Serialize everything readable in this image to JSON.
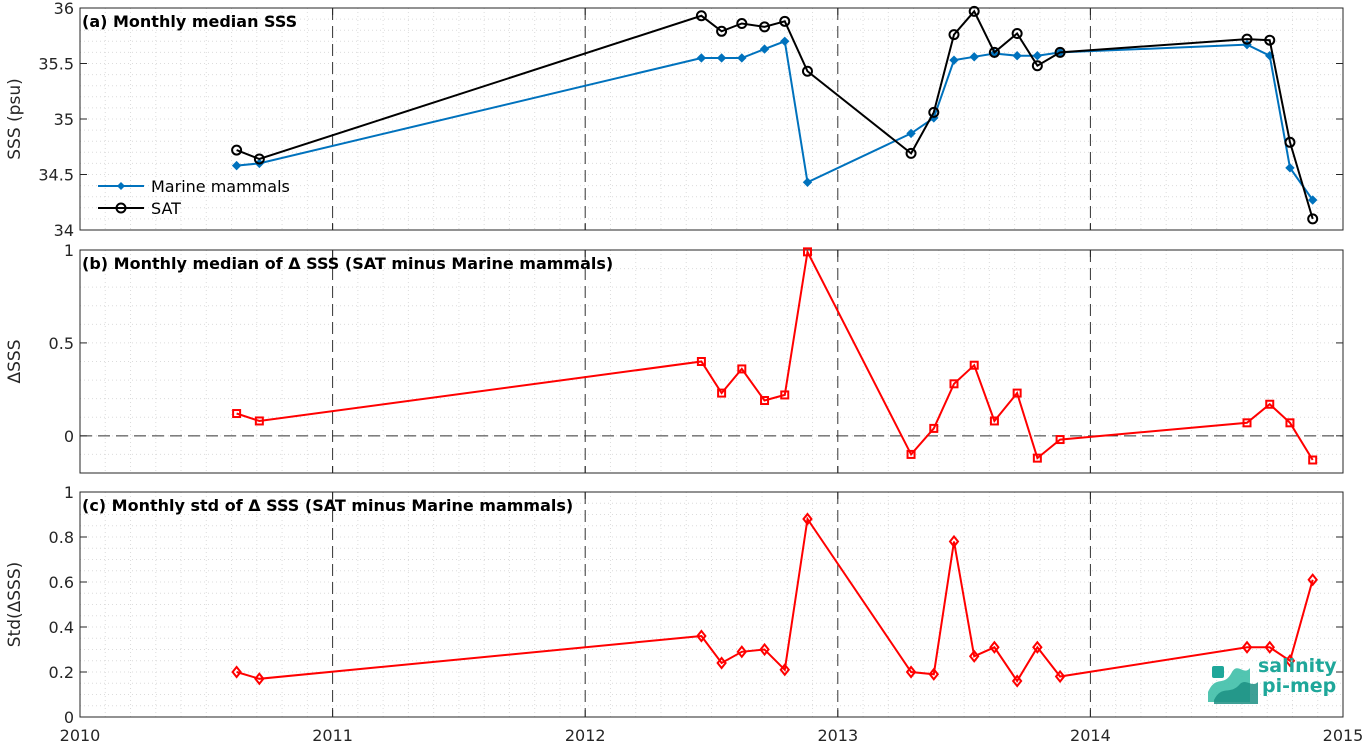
{
  "colors": {
    "mm": "#0072BD",
    "sat": "#000000",
    "delta": "#FF0000",
    "logo": "#1fa79a"
  },
  "logo": {
    "line1": "salinity",
    "line2": "pi-mep"
  },
  "chart_data": [
    {
      "type": "line",
      "title": "(a) Monthly median SSS",
      "ylabel": "SSS (psu)",
      "xlim": [
        2010,
        2015
      ],
      "ylim": [
        34,
        36
      ],
      "yticks": [
        34,
        34.5,
        35,
        35.5,
        36
      ],
      "ytick_labels": [
        "34",
        "34.5",
        "35",
        "35.5",
        "36"
      ],
      "legend": "lower-left",
      "series": [
        {
          "name": "Marine mammals",
          "marker": "dot",
          "color": "#0072BD",
          "x": [
            2010.62,
            2010.71,
            2012.46,
            2012.54,
            2012.62,
            2012.71,
            2012.79,
            2012.88,
            2013.29,
            2013.38,
            2013.46,
            2013.54,
            2013.62,
            2013.71,
            2013.79,
            2013.88,
            2014.62,
            2014.71,
            2014.79,
            2014.88
          ],
          "values": [
            34.58,
            34.6,
            35.55,
            35.55,
            35.55,
            35.63,
            35.7,
            34.43,
            34.87,
            35.01,
            35.53,
            35.56,
            35.59,
            35.57,
            35.57,
            35.6,
            35.67,
            35.57,
            34.56,
            34.27
          ]
        },
        {
          "name": "SAT",
          "marker": "circle",
          "color": "#000000",
          "x": [
            2010.62,
            2010.71,
            2012.46,
            2012.54,
            2012.62,
            2012.71,
            2012.79,
            2012.88,
            2013.29,
            2013.38,
            2013.46,
            2013.54,
            2013.62,
            2013.71,
            2013.79,
            2013.88,
            2014.62,
            2014.71,
            2014.79,
            2014.88
          ],
          "values": [
            34.72,
            34.64,
            35.93,
            35.79,
            35.86,
            35.83,
            35.88,
            35.43,
            34.69,
            35.06,
            35.76,
            35.97,
            35.6,
            35.77,
            35.48,
            35.6,
            35.72,
            35.71,
            34.79,
            34.1
          ]
        }
      ]
    },
    {
      "type": "line",
      "title": "(b) Monthly median of Δ SSS (SAT minus Marine mammals)",
      "ylabel": "ΔSSS",
      "xlim": [
        2010,
        2015
      ],
      "ylim": [
        -0.2,
        1
      ],
      "yticks": [
        0,
        0.5,
        1
      ],
      "ytick_labels": [
        "0",
        "0.5",
        "1"
      ],
      "zero_line": true,
      "series": [
        {
          "marker": "square",
          "color": "#FF0000",
          "x": [
            2010.62,
            2010.71,
            2012.46,
            2012.54,
            2012.62,
            2012.71,
            2012.79,
            2012.88,
            2013.29,
            2013.38,
            2013.46,
            2013.54,
            2013.62,
            2013.71,
            2013.79,
            2013.88,
            2014.62,
            2014.71,
            2014.79,
            2014.88
          ],
          "values": [
            0.12,
            0.08,
            0.4,
            0.23,
            0.36,
            0.19,
            0.22,
            0.99,
            -0.1,
            0.04,
            0.28,
            0.38,
            0.08,
            0.23,
            -0.12,
            -0.02,
            0.07,
            0.17,
            0.07,
            -0.13
          ]
        }
      ]
    },
    {
      "type": "line",
      "title": "(c) Monthly std of Δ SSS (SAT minus Marine mammals)",
      "ylabel": "Std(ΔSSS)",
      "xlim": [
        2010,
        2015
      ],
      "ylim": [
        0,
        1
      ],
      "yticks": [
        0,
        0.2,
        0.4,
        0.6,
        0.8,
        1
      ],
      "ytick_labels": [
        "0",
        "0.2",
        "0.4",
        "0.6",
        "0.8",
        "1"
      ],
      "xticks": [
        2010,
        2011,
        2012,
        2013,
        2014,
        2015
      ],
      "xtick_labels": [
        "2010",
        "2011",
        "2012",
        "2013",
        "2014",
        "2015"
      ],
      "series": [
        {
          "marker": "diamond",
          "color": "#FF0000",
          "x": [
            2010.62,
            2010.71,
            2012.46,
            2012.54,
            2012.62,
            2012.71,
            2012.79,
            2012.88,
            2013.29,
            2013.38,
            2013.46,
            2013.54,
            2013.62,
            2013.71,
            2013.79,
            2013.88,
            2014.62,
            2014.71,
            2014.79,
            2014.88
          ],
          "values": [
            0.2,
            0.17,
            0.36,
            0.24,
            0.29,
            0.3,
            0.21,
            0.88,
            0.2,
            0.19,
            0.78,
            0.27,
            0.31,
            0.16,
            0.31,
            0.18,
            0.31,
            0.31,
            0.25,
            0.61
          ]
        }
      ]
    }
  ]
}
